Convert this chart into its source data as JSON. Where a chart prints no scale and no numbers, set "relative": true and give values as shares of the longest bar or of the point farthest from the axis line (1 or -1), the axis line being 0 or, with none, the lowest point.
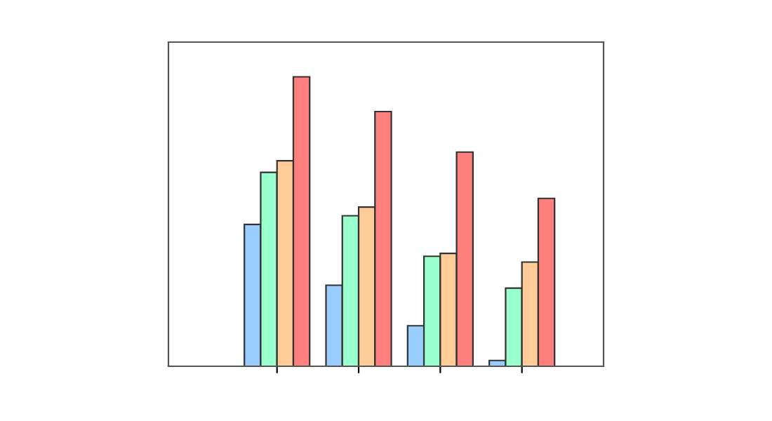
{
  "chart_data": {
    "type": "bar",
    "relative": true,
    "categories": [
      null,
      null,
      null,
      null
    ],
    "series": [
      {
        "color": "#99ccff",
        "values": [
          0.49,
          0.28,
          0.14,
          0.02
        ]
      },
      {
        "color": "#99ffcc",
        "values": [
          0.67,
          0.52,
          0.38,
          0.27
        ]
      },
      {
        "color": "#ffcc99",
        "values": [
          0.71,
          0.55,
          0.39,
          0.36
        ]
      },
      {
        "color": "#ff7f7f",
        "values": [
          1,
          0.88,
          0.74,
          0.58
        ]
      }
    ],
    "grid": false,
    "legend": false
  }
}
